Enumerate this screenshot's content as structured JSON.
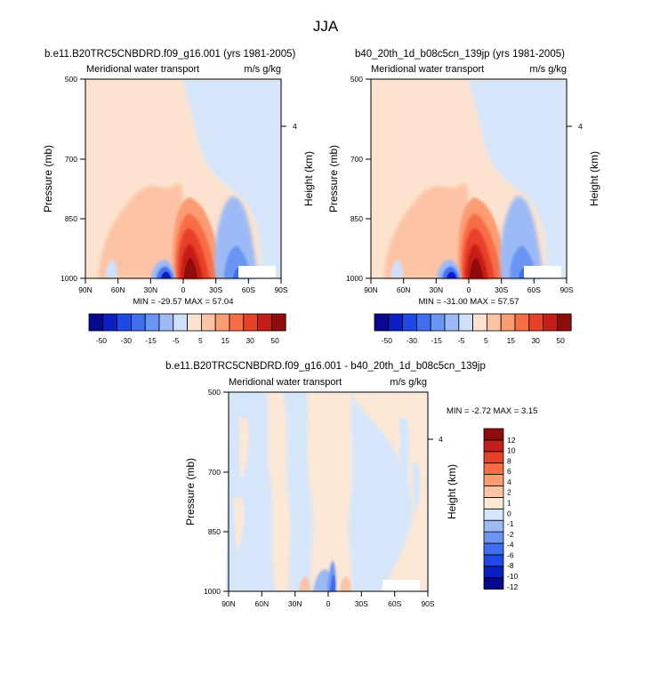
{
  "page": {
    "title": "JJA"
  },
  "palettes": {
    "panel": [
      "#08088f",
      "#0c1fc4",
      "#1f49e6",
      "#3f6ef0",
      "#6a95f3",
      "#9cbaf6",
      "#cfe1f9",
      "#fde3cf",
      "#fcc3a5",
      "#fb9c73",
      "#f86d45",
      "#e8412a",
      "#c51d19",
      "#8f0c0c"
    ],
    "diff": [
      "#08088f",
      "#0c1fc4",
      "#1f49e6",
      "#3f6ef0",
      "#6a95f3",
      "#9cbaf6",
      "#d6e6fa",
      "#fde8d6",
      "#fcc3a5",
      "#fb9c73",
      "#f86d45",
      "#e8412a",
      "#c51d19",
      "#8f0c0c"
    ]
  },
  "chart_data": [
    {
      "id": "panel-left",
      "type": "heatmap",
      "title": "b.e11.B20TRC5CNBDRD.f09_g16.001 (yrs 1981-2005)",
      "left_string": "Meridional water transport",
      "right_string": "m/s g/kg",
      "ylabel": "Pressure (mb)",
      "ylabel_right": "Height (km)",
      "xlabel": "",
      "x_ticks": [
        "90N",
        "60N",
        "30N",
        "0",
        "30S",
        "60S",
        "90S"
      ],
      "y_ticks": [
        "500",
        "700",
        "850",
        "1000"
      ],
      "y_ticks_right": [
        "4"
      ],
      "ylim": [
        1000,
        500
      ],
      "xlim": [
        90,
        -90
      ],
      "min_max": "MIN = -29.57  MAX =  57.04",
      "min": -29.57,
      "max": 57.04,
      "colorbar": {
        "orientation": "horizontal",
        "labels": [
          "-50",
          "-30",
          "-15",
          "-5",
          "5",
          "15",
          "30",
          "50"
        ]
      }
    },
    {
      "id": "panel-right",
      "type": "heatmap",
      "title": "b40_20th_1d_b08c5cn_139jp (yrs 1981-2005)",
      "left_string": "Meridional water transport",
      "right_string": "m/s g/kg",
      "ylabel": "Pressure (mb)",
      "ylabel_right": "Height (km)",
      "xlabel": "",
      "x_ticks": [
        "90N",
        "60N",
        "30N",
        "0",
        "30S",
        "60S",
        "90S"
      ],
      "y_ticks": [
        "500",
        "700",
        "850",
        "1000"
      ],
      "y_ticks_right": [
        "4"
      ],
      "ylim": [
        1000,
        500
      ],
      "xlim": [
        90,
        -90
      ],
      "min_max": "MIN = -31.00  MAX =  57.57",
      "min": -31.0,
      "max": 57.57,
      "colorbar": {
        "orientation": "horizontal",
        "labels": [
          "-50",
          "-30",
          "-15",
          "-5",
          "5",
          "15",
          "30",
          "50"
        ]
      }
    },
    {
      "id": "panel-diff",
      "type": "heatmap",
      "title": "b.e11.B20TRC5CNBDRD.f09_g16.001 - b40_20th_1d_b08c5cn_139jp",
      "left_string": "Meridional water transport",
      "right_string": "m/s g/kg",
      "ylabel": "Pressure (mb)",
      "ylabel_right": "Height (km)",
      "xlabel": "",
      "x_ticks": [
        "90N",
        "60N",
        "30N",
        "0",
        "30S",
        "60S",
        "90S"
      ],
      "y_ticks": [
        "500",
        "700",
        "850",
        "1000"
      ],
      "y_ticks_right": [
        "4"
      ],
      "ylim": [
        1000,
        500
      ],
      "xlim": [
        90,
        -90
      ],
      "min_max": "MIN = -2.72  MAX =  3.15",
      "min": -2.72,
      "max": 3.15,
      "colorbar": {
        "orientation": "vertical",
        "labels": [
          "12",
          "10",
          "8",
          "6",
          "4",
          "2",
          "1",
          "0",
          "-1",
          "-2",
          "-4",
          "-6",
          "-8",
          "-10",
          "-12"
        ]
      }
    }
  ]
}
